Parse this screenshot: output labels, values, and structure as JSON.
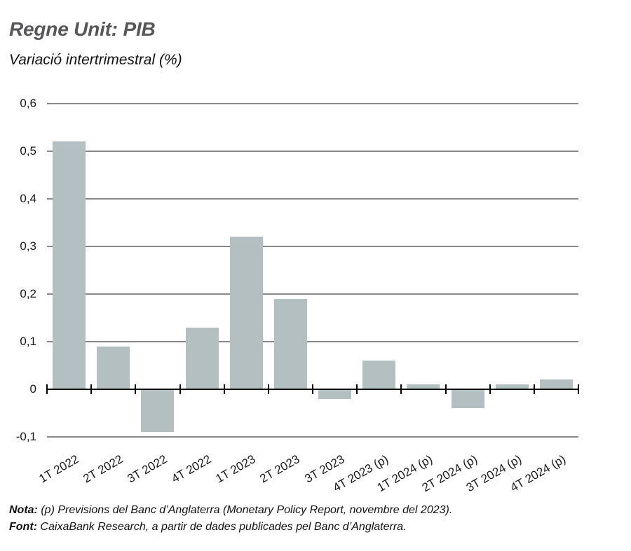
{
  "header": {
    "title": "Regne Unit: PIB",
    "subtitle": "Variació intertrimestral (%)"
  },
  "chart_data": {
    "type": "bar",
    "title": "Regne Unit: PIB",
    "subtitle": "Variació intertrimestral (%)",
    "categories": [
      "1T 2022",
      "2T 2022",
      "3T 2022",
      "4T 2022",
      "1T 2023",
      "2T 2023",
      "3T 2023",
      "4T 2023 (p)",
      "1T 2024 (p)",
      "2T 2024 (p)",
      "3T 2024 (p)",
      "4T 2024 (p)"
    ],
    "values": [
      0.52,
      0.09,
      -0.09,
      0.13,
      0.32,
      0.19,
      -0.02,
      0.06,
      0.01,
      -0.04,
      0.01,
      0.02
    ],
    "xlabel": "",
    "ylabel": "",
    "ylim": [
      -0.1,
      0.6
    ],
    "yticks": [
      {
        "label": "0,6",
        "value": 0.6
      },
      {
        "label": "0,5",
        "value": 0.5
      },
      {
        "label": "0,4",
        "value": 0.4
      },
      {
        "label": "0,3",
        "value": 0.3
      },
      {
        "label": "0,2",
        "value": 0.2
      },
      {
        "label": "0,1",
        "value": 0.1
      },
      {
        "label": "0",
        "value": 0
      },
      {
        "label": "-0,1",
        "value": -0.1
      }
    ],
    "grid": true,
    "legend": false,
    "bar_color": "#b4bfc2",
    "grid_color": "#878787",
    "axis_color": "#000000"
  },
  "footer": {
    "note_label": "Nota:",
    "note_text": " (p) Previsions del Banc d’Anglaterra (Monetary Policy Report, novembre del 2023).",
    "source_label": "Font:",
    "source_text": " CaixaBank Research, a partir de dades publicades pel Banc d’Anglaterra."
  }
}
